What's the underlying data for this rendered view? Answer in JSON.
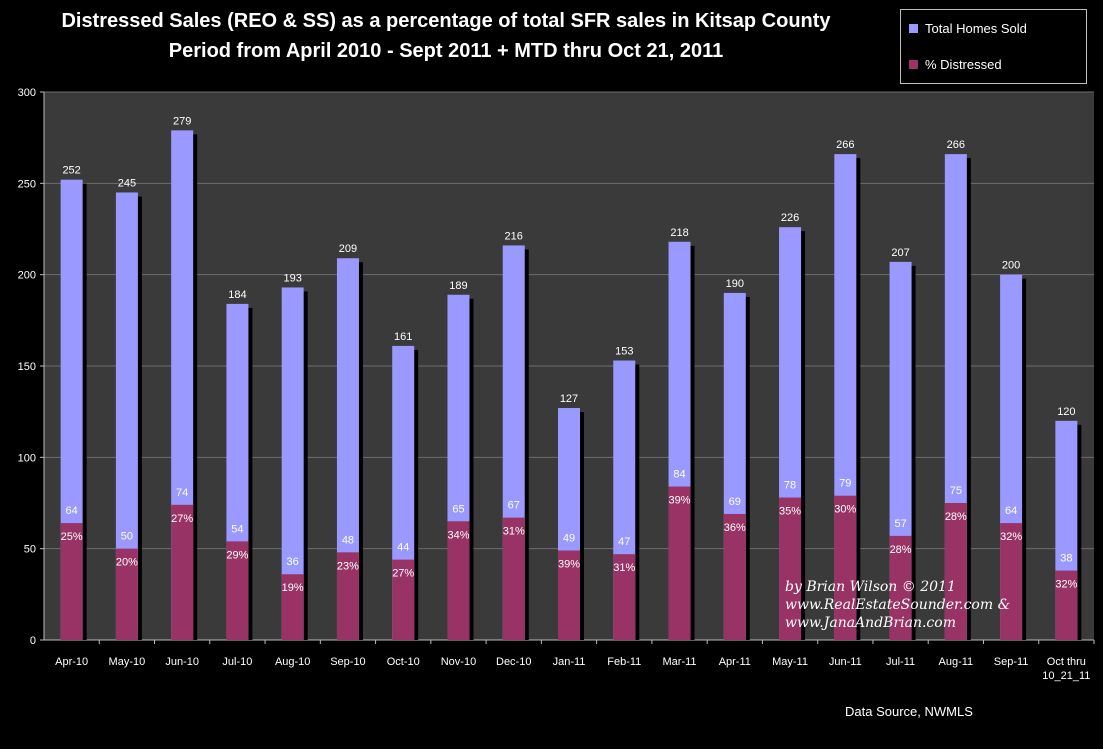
{
  "colors": {
    "background": "#000000",
    "plot_area": "#3a3a3a",
    "total_bar": "#9999ff",
    "distressed_bar": "#993366",
    "gridline": "#6e6e6e",
    "text": "#ffffff"
  },
  "credit": {
    "line1": "by Brian Wilson © 2011",
    "line2": "www.RealEstateSounder.com &",
    "line3": "www.JanaAndBrian.com"
  },
  "source": "Data Source, NWMLS",
  "chart_data": {
    "type": "bar",
    "title": "Distressed Sales (REO & SS) as a percentage of total SFR sales in Kitsap County",
    "subtitle": "Period from April 2010 - Sept 2011 + MTD thru Oct 21, 2011",
    "categories": [
      "Apr-10",
      "May-10",
      "Jun-10",
      "Jul-10",
      "Aug-10",
      "Sep-10",
      "Oct-10",
      "Nov-10",
      "Dec-10",
      "Jan-11",
      "Feb-11",
      "Mar-11",
      "Apr-11",
      "May-11",
      "Jun-11",
      "Jul-11",
      "Aug-11",
      "Sep-11",
      "Oct thru|10_21_11"
    ],
    "series": [
      {
        "name": "Total Homes Sold",
        "values": [
          252,
          245,
          279,
          184,
          193,
          209,
          161,
          189,
          216,
          127,
          153,
          218,
          190,
          226,
          266,
          207,
          266,
          200,
          120
        ]
      },
      {
        "name": "% Distressed",
        "values": [
          64,
          50,
          74,
          54,
          36,
          48,
          44,
          65,
          67,
          49,
          47,
          84,
          69,
          78,
          79,
          57,
          75,
          64,
          38
        ]
      }
    ],
    "percent_labels": [
      "25%",
      "20%",
      "27%",
      "29%",
      "19%",
      "23%",
      "27%",
      "34%",
      "31%",
      "39%",
      "31%",
      "39%",
      "36%",
      "35%",
      "30%",
      "28%",
      "28%",
      "32%",
      "32%"
    ],
    "ylim": [
      0,
      300
    ],
    "yticks": [
      0,
      50,
      100,
      150,
      200,
      250,
      300
    ],
    "xlabel": "",
    "ylabel": "",
    "grid": true,
    "legend_position": "top-right"
  }
}
